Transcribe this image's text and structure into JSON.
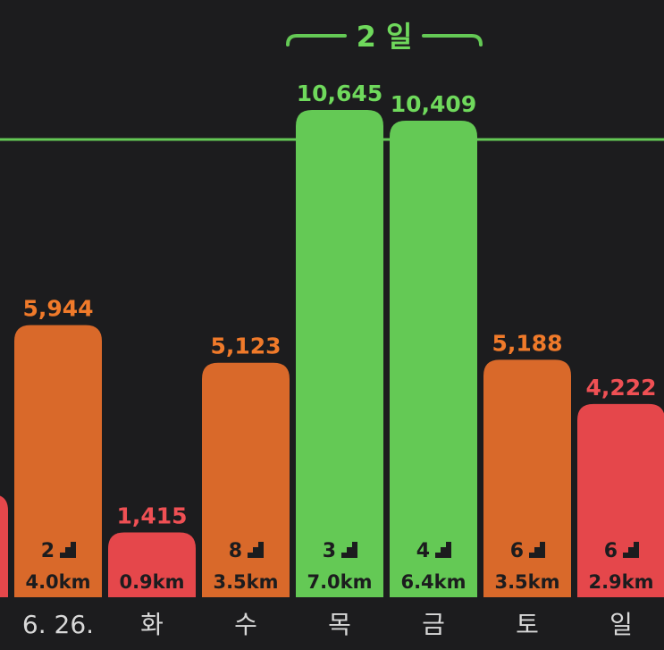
{
  "chart_data": {
    "type": "bar",
    "categories": [
      "",
      "6. 26.",
      "화",
      "수",
      "목",
      "금",
      "토",
      "일"
    ],
    "values": [
      null,
      5944,
      1415,
      5123,
      10645,
      10409,
      5188,
      4222
    ],
    "value_labels": [
      "",
      "5,944",
      "1,415",
      "5,123",
      "10,645",
      "10,409",
      "5,188",
      "4,222"
    ],
    "floors": [
      null,
      2,
      null,
      8,
      3,
      4,
      6,
      6
    ],
    "floor_labels": [
      "",
      "2",
      "",
      "8",
      "3",
      "4",
      "6",
      "6"
    ],
    "distance_labels": [
      "",
      "4.0km",
      "0.9km",
      "3.5km",
      "7.0km",
      "6.4km",
      "3.5km",
      "2.9km"
    ],
    "goal": 10000,
    "streak_label": "2 일",
    "colors": {
      "background": "#1c1c1e",
      "goal_met": "#64c955",
      "mid": "#d9692a",
      "low": "#e5474b",
      "low_label": "#ef5054",
      "mid_label": "#f07a2a",
      "goal_label": "#6fd95c",
      "axis_text": "#d8d8d8",
      "bar_text": "#1c1c1e"
    },
    "bar_color_keys": [
      "low",
      "mid",
      "low",
      "mid",
      "goal_met",
      "goal_met",
      "mid",
      "low"
    ],
    "stair_icon": "stairs-icon"
  }
}
